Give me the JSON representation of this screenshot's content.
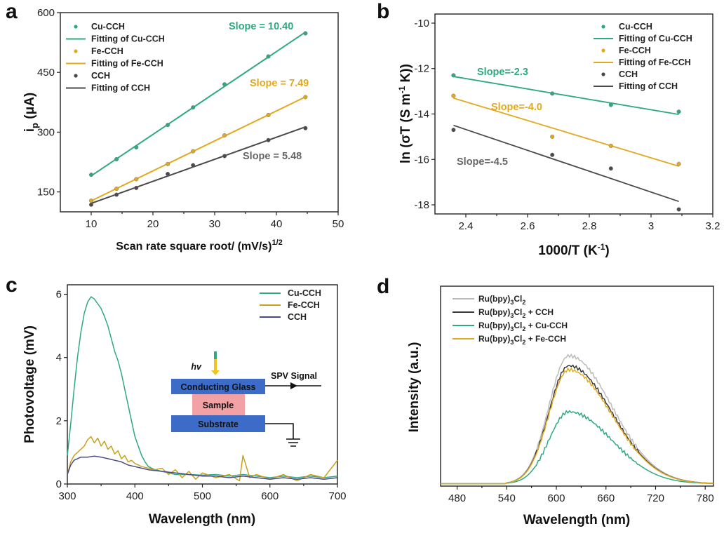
{
  "chart_data": [
    {
      "panel": "a",
      "type": "scatter",
      "xlabel": "Scan rate square root/ (mV/s)",
      "xlabel_sup": "1/2",
      "ylabel": "i",
      "ylabel_sub": "p",
      "ylabel_unit": " (μA)",
      "xlim": [
        5,
        50
      ],
      "ylim": [
        100,
        600
      ],
      "xticks": [
        10,
        20,
        30,
        40,
        50
      ],
      "yticks": [
        150,
        300,
        450,
        600
      ],
      "legend_position": "top-left",
      "series": [
        {
          "name": "Cu-CCH",
          "fit_name": "Fitting of Cu-CCH",
          "color": "#2ea982",
          "x": [
            10,
            14.1,
            17.3,
            22.4,
            26.5,
            31.6,
            38.7,
            44.7
          ],
          "y": [
            193,
            232,
            262,
            318,
            362,
            420,
            490,
            548
          ]
        },
        {
          "name": "Fe-CCH",
          "fit_name": "Fitting of Fe-CCH",
          "color": "#e2a91e",
          "x": [
            10,
            14.1,
            17.3,
            22.4,
            26.5,
            31.6,
            38.7,
            44.7
          ],
          "y": [
            128,
            158,
            182,
            220,
            252,
            292,
            343,
            388
          ]
        },
        {
          "name": "CCH",
          "fit_name": "Fitting of CCH",
          "color": "#4a4a4a",
          "x": [
            10,
            14.1,
            17.3,
            22.4,
            26.5,
            31.6,
            38.7,
            44.7
          ],
          "y": [
            118,
            143,
            160,
            195,
            217,
            240,
            280,
            310
          ]
        }
      ],
      "annotations": [
        {
          "text": "Slope = 10.40",
          "color": "#2ea982"
        },
        {
          "text": "Slope = 7.49",
          "color": "#e2a91e"
        },
        {
          "text": "Slope = 5.48",
          "color": "#666666"
        }
      ]
    },
    {
      "panel": "b",
      "type": "scatter",
      "xlabel": "1000/T (K",
      "xlabel_sup": "-1",
      "xlabel_end": ")",
      "ylabel": "ln (σT (S m",
      "ylabel_sup": "-1",
      "ylabel_end": " K))",
      "xlim": [
        2.3,
        3.2
      ],
      "ylim": [
        -18.4,
        -9.6
      ],
      "xticks": [
        2.4,
        2.6,
        2.8,
        3.0,
        3.2
      ],
      "yticks": [
        -10,
        -12,
        -14,
        -16,
        -18
      ],
      "legend_position": "top-right",
      "series": [
        {
          "name": "Cu-CCH",
          "fit_name": "Fitting of Cu-CCH",
          "color": "#2ea982",
          "x": [
            2.36,
            2.68,
            2.87,
            3.09
          ],
          "y": [
            -12.3,
            -13.1,
            -13.6,
            -13.9
          ],
          "fit": [
            -12.35,
            -14.02
          ]
        },
        {
          "name": "Fe-CCH",
          "fit_name": "Fitting of Fe-CCH",
          "color": "#e2a91e",
          "x": [
            2.36,
            2.68,
            2.87,
            3.09
          ],
          "y": [
            -13.2,
            -15.0,
            -15.4,
            -16.2
          ],
          "fit": [
            -13.3,
            -16.3
          ]
        },
        {
          "name": "CCH",
          "fit_name": "Fitting of CCH",
          "color": "#4a4a4a",
          "x": [
            2.36,
            2.68,
            2.87,
            3.09
          ],
          "y": [
            -14.7,
            -15.8,
            -16.4,
            -18.2
          ],
          "fit": [
            -14.5,
            -17.85
          ]
        }
      ],
      "annotations": [
        {
          "text": "Slope=-2.3",
          "color": "#2ea982"
        },
        {
          "text": "Slope=-4.0",
          "color": "#e2a91e"
        },
        {
          "text": "Slope=-4.5",
          "color": "#666666"
        }
      ]
    },
    {
      "panel": "c",
      "type": "line",
      "xlabel": "Wavelength (nm)",
      "ylabel": "Photovoltage (mV)",
      "xlim": [
        300,
        700
      ],
      "ylim": [
        0,
        6.3
      ],
      "xticks": [
        300,
        400,
        500,
        600,
        700
      ],
      "yticks": [
        0,
        2,
        4,
        6
      ],
      "legend_position": "top-right",
      "series": [
        {
          "name": "Cu-CCH",
          "color": "#2ea982",
          "x": [
            300,
            305,
            310,
            315,
            320,
            325,
            330,
            335,
            340,
            345,
            350,
            355,
            360,
            365,
            370,
            375,
            380,
            385,
            390,
            395,
            400,
            405,
            410,
            415,
            420,
            430,
            440,
            450,
            460,
            480,
            500,
            520,
            540,
            560,
            580,
            600,
            620,
            640,
            660,
            680,
            700
          ],
          "y": [
            0.9,
            1.9,
            3.0,
            4.0,
            4.8,
            5.4,
            5.75,
            5.92,
            5.85,
            5.7,
            5.55,
            5.3,
            5.0,
            4.6,
            4.2,
            3.9,
            3.5,
            3.0,
            2.5,
            2.0,
            1.5,
            1.2,
            0.9,
            0.7,
            0.55,
            0.45,
            0.4,
            0.35,
            0.3,
            0.3,
            0.28,
            0.3,
            0.25,
            0.3,
            0.25,
            0.2,
            0.25,
            0.2,
            0.25,
            0.2,
            0.25
          ]
        },
        {
          "name": "Fe-CCH",
          "color": "#c9a21c",
          "x": [
            300,
            305,
            310,
            315,
            320,
            325,
            330,
            335,
            340,
            345,
            350,
            355,
            360,
            365,
            370,
            375,
            380,
            385,
            390,
            395,
            400,
            410,
            420,
            430,
            440,
            450,
            460,
            470,
            480,
            490,
            500,
            520,
            540,
            555,
            560,
            570,
            580,
            600,
            620,
            640,
            660,
            680,
            700
          ],
          "y": [
            0.3,
            0.7,
            0.9,
            1.0,
            1.1,
            1.2,
            1.4,
            1.5,
            1.3,
            1.45,
            1.2,
            1.35,
            1.1,
            1.2,
            0.95,
            1.05,
            0.8,
            0.9,
            0.7,
            0.75,
            0.65,
            0.55,
            0.5,
            0.45,
            0.5,
            0.3,
            0.45,
            0.2,
            0.4,
            0.15,
            0.35,
            0.2,
            0.3,
            0.1,
            0.9,
            0.2,
            0.3,
            0.15,
            0.3,
            0.1,
            0.3,
            0.2,
            0.75
          ]
        },
        {
          "name": "CCH",
          "color": "#4a4a8a",
          "x": [
            300,
            305,
            310,
            315,
            320,
            330,
            340,
            350,
            360,
            370,
            380,
            390,
            400,
            410,
            420,
            440,
            460,
            480,
            500,
            520,
            540,
            560,
            580,
            600,
            620,
            640,
            660,
            680,
            700
          ],
          "y": [
            0.3,
            0.6,
            0.75,
            0.8,
            0.85,
            0.85,
            0.88,
            0.85,
            0.8,
            0.75,
            0.7,
            0.6,
            0.55,
            0.5,
            0.45,
            0.4,
            0.35,
            0.3,
            0.25,
            0.25,
            0.2,
            0.25,
            0.2,
            0.15,
            0.2,
            0.15,
            0.2,
            0.15,
            0.2
          ]
        }
      ],
      "inset": {
        "light_label": "hv",
        "signal_label": "SPV Signal",
        "top_layer": "Conducting Glass",
        "middle_layer": "Sample",
        "bottom_layer": "Substrate",
        "layer_color": "#3d6cc8",
        "sample_color": "#f2a1a4"
      }
    },
    {
      "panel": "d",
      "type": "line",
      "xlabel": "Wavelength (nm)",
      "ylabel": "Intensity (a.u.)",
      "xlim": [
        460,
        790
      ],
      "ylim": [
        0,
        1.0
      ],
      "xticks": [
        480,
        540,
        600,
        660,
        720,
        780
      ],
      "legend_position": "top-left",
      "series": [
        {
          "name": "Ru(bpy)3Cl2",
          "label_parts": [
            "Ru(bpy)",
            "3",
            "Cl",
            "2",
            ""
          ],
          "color": "#bbbbbb",
          "peak": 0.64
        },
        {
          "name": "Ru(bpy)3Cl2 + CCH",
          "label_parts": [
            "Ru(bpy)",
            "3",
            "Cl",
            "2",
            " + CCH"
          ],
          "color": "#3a3a3a",
          "peak": 0.59
        },
        {
          "name": "Ru(bpy)3Cl2 + Cu-CCH",
          "label_parts": [
            "Ru(bpy)",
            "3",
            "Cl",
            "2",
            " + Cu-CCH"
          ],
          "color": "#2ea982",
          "peak": 0.36
        },
        {
          "name": "Ru(bpy)3Cl2 + Fe-CCH",
          "label_parts": [
            "Ru(bpy)",
            "3",
            "Cl",
            "2",
            " + Fe-CCH"
          ],
          "color": "#e2a91e",
          "peak": 0.57
        }
      ],
      "peak_wavelength": 615
    }
  ]
}
